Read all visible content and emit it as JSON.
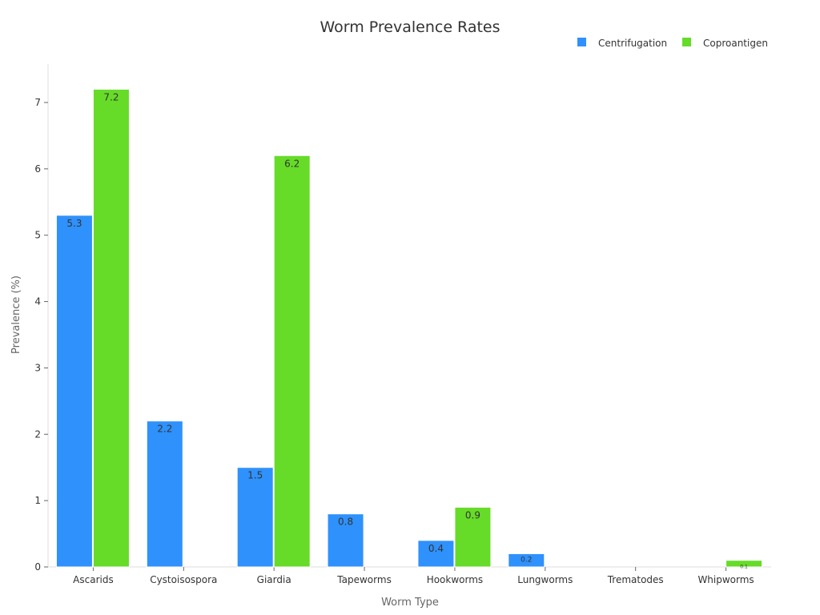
{
  "chart_data": {
    "type": "bar",
    "title": "Worm Prevalence Rates",
    "xlabel": "Worm Type",
    "ylabel": "Prevalence (%)",
    "ylim": [
      0,
      7.6
    ],
    "yticks": [
      0,
      1,
      2,
      3,
      4,
      5,
      6,
      7
    ],
    "legend_position": "top-right",
    "categories": [
      "Ascarids",
      "Cystoisospora",
      "Giardia",
      "Tapeworms",
      "Hookworms",
      "Lungworms",
      "Trematodes",
      "Whipworms"
    ],
    "series": [
      {
        "name": "Centrifugation",
        "color": "#2f91fb",
        "values": [
          5.3,
          2.2,
          1.5,
          0.8,
          0.4,
          0.2,
          null,
          null
        ]
      },
      {
        "name": "Coproantigen",
        "color": "#66dc28",
        "values": [
          7.2,
          null,
          6.2,
          null,
          0.9,
          null,
          null,
          0.1
        ]
      }
    ]
  }
}
